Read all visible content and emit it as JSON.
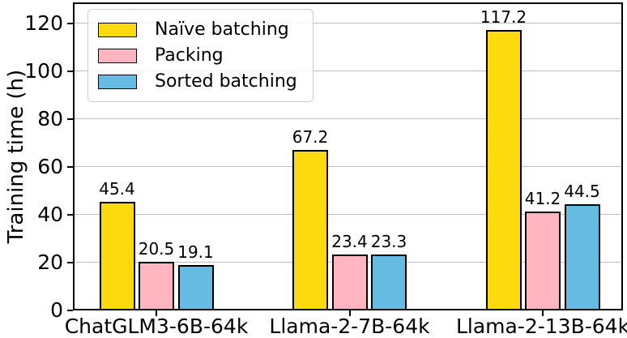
{
  "chart_data": {
    "type": "bar",
    "title": "",
    "xlabel": "",
    "ylabel": "Training time (h)",
    "categories": [
      "ChatGLM3-6B-64k",
      "Llama-2-7B-64k",
      "Llama-2-13B-64k"
    ],
    "series": [
      {
        "name": "Naïve batching",
        "color": "#FDDA0D",
        "values": [
          45.4,
          67.2,
          117.2
        ]
      },
      {
        "name": "Packing",
        "color": "#FFB6C1",
        "values": [
          20.5,
          23.4,
          41.2
        ]
      },
      {
        "name": "Sorted batching",
        "color": "#66BBE3",
        "values": [
          19.1,
          23.3,
          44.5
        ]
      }
    ],
    "value_labels": [
      "45.4",
      "20.5",
      "19.1",
      "67.2",
      "23.4",
      "23.3",
      "117.2",
      "41.2",
      "44.5"
    ],
    "yticks": [
      0,
      20,
      40,
      60,
      80,
      100,
      120
    ],
    "ylim": [
      0,
      128.8
    ],
    "grid": true,
    "grid_color": "#BDBDBD",
    "bar_edge_color": "#000000",
    "frame_color": "#000000",
    "legend_position": "upper left",
    "legend_border_color": "#CCCCCC"
  }
}
